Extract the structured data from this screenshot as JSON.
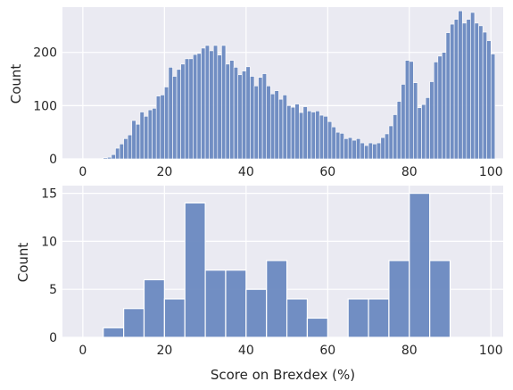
{
  "chart_data": [
    {
      "type": "histogram",
      "ylabel": "Count",
      "xlabel": "",
      "xlim": [
        -5,
        103
      ],
      "ylim": [
        0,
        285
      ],
      "xticks": [
        0,
        20,
        40,
        60,
        80,
        100
      ],
      "yticks": [
        0,
        100,
        200
      ],
      "grid": true,
      "bin_width": 1,
      "bins": [
        [
          5,
          2
        ],
        [
          6,
          3
        ],
        [
          7,
          8
        ],
        [
          8,
          20
        ],
        [
          9,
          28
        ],
        [
          10,
          38
        ],
        [
          11,
          45
        ],
        [
          12,
          72
        ],
        [
          13,
          65
        ],
        [
          14,
          88
        ],
        [
          15,
          80
        ],
        [
          16,
          92
        ],
        [
          17,
          95
        ],
        [
          18,
          118
        ],
        [
          19,
          120
        ],
        [
          20,
          135
        ],
        [
          21,
          172
        ],
        [
          22,
          155
        ],
        [
          23,
          168
        ],
        [
          24,
          178
        ],
        [
          25,
          188
        ],
        [
          26,
          188
        ],
        [
          27,
          196
        ],
        [
          28,
          198
        ],
        [
          29,
          208
        ],
        [
          30,
          213
        ],
        [
          31,
          203
        ],
        [
          32,
          213
        ],
        [
          33,
          195
        ],
        [
          34,
          213
        ],
        [
          35,
          178
        ],
        [
          36,
          185
        ],
        [
          37,
          172
        ],
        [
          38,
          158
        ],
        [
          39,
          165
        ],
        [
          40,
          173
        ],
        [
          41,
          155
        ],
        [
          42,
          137
        ],
        [
          43,
          153
        ],
        [
          44,
          160
        ],
        [
          45,
          137
        ],
        [
          46,
          122
        ],
        [
          47,
          128
        ],
        [
          48,
          112
        ],
        [
          49,
          120
        ],
        [
          50,
          100
        ],
        [
          51,
          97
        ],
        [
          52,
          103
        ],
        [
          53,
          87
        ],
        [
          54,
          98
        ],
        [
          55,
          90
        ],
        [
          56,
          88
        ],
        [
          57,
          90
        ],
        [
          58,
          82
        ],
        [
          59,
          80
        ],
        [
          60,
          70
        ],
        [
          61,
          60
        ],
        [
          62,
          50
        ],
        [
          63,
          48
        ],
        [
          64,
          38
        ],
        [
          65,
          40
        ],
        [
          66,
          35
        ],
        [
          67,
          38
        ],
        [
          68,
          30
        ],
        [
          69,
          25
        ],
        [
          70,
          30
        ],
        [
          71,
          28
        ],
        [
          72,
          30
        ],
        [
          73,
          40
        ],
        [
          74,
          47
        ],
        [
          75,
          62
        ],
        [
          76,
          83
        ],
        [
          77,
          108
        ],
        [
          78,
          140
        ],
        [
          79,
          185
        ],
        [
          80,
          183
        ],
        [
          81,
          143
        ],
        [
          82,
          96
        ],
        [
          83,
          102
        ],
        [
          84,
          115
        ],
        [
          85,
          145
        ],
        [
          86,
          182
        ],
        [
          87,
          193
        ],
        [
          88,
          200
        ],
        [
          89,
          237
        ],
        [
          90,
          253
        ],
        [
          91,
          262
        ],
        [
          92,
          278
        ],
        [
          93,
          255
        ],
        [
          94,
          262
        ],
        [
          95,
          275
        ],
        [
          96,
          255
        ],
        [
          97,
          250
        ],
        [
          98,
          238
        ],
        [
          99,
          222
        ],
        [
          100,
          197
        ]
      ]
    },
    {
      "type": "histogram",
      "ylabel": "Count",
      "xlabel": "Score on Brexdex (%)",
      "xlim": [
        -5,
        103
      ],
      "ylim": [
        0,
        15.8
      ],
      "xticks": [
        0,
        20,
        40,
        60,
        80,
        100
      ],
      "yticks": [
        0,
        5,
        10,
        15
      ],
      "grid": true,
      "bin_width": 5,
      "bins": [
        [
          5,
          1
        ],
        [
          10,
          3
        ],
        [
          15,
          6
        ],
        [
          20,
          4
        ],
        [
          25,
          14
        ],
        [
          30,
          7
        ],
        [
          35,
          7
        ],
        [
          40,
          5
        ],
        [
          45,
          8
        ],
        [
          50,
          4
        ],
        [
          55,
          2
        ],
        [
          60,
          0
        ],
        [
          65,
          4
        ],
        [
          70,
          4
        ],
        [
          75,
          8
        ],
        [
          80,
          15
        ],
        [
          85,
          8
        ]
      ]
    }
  ]
}
